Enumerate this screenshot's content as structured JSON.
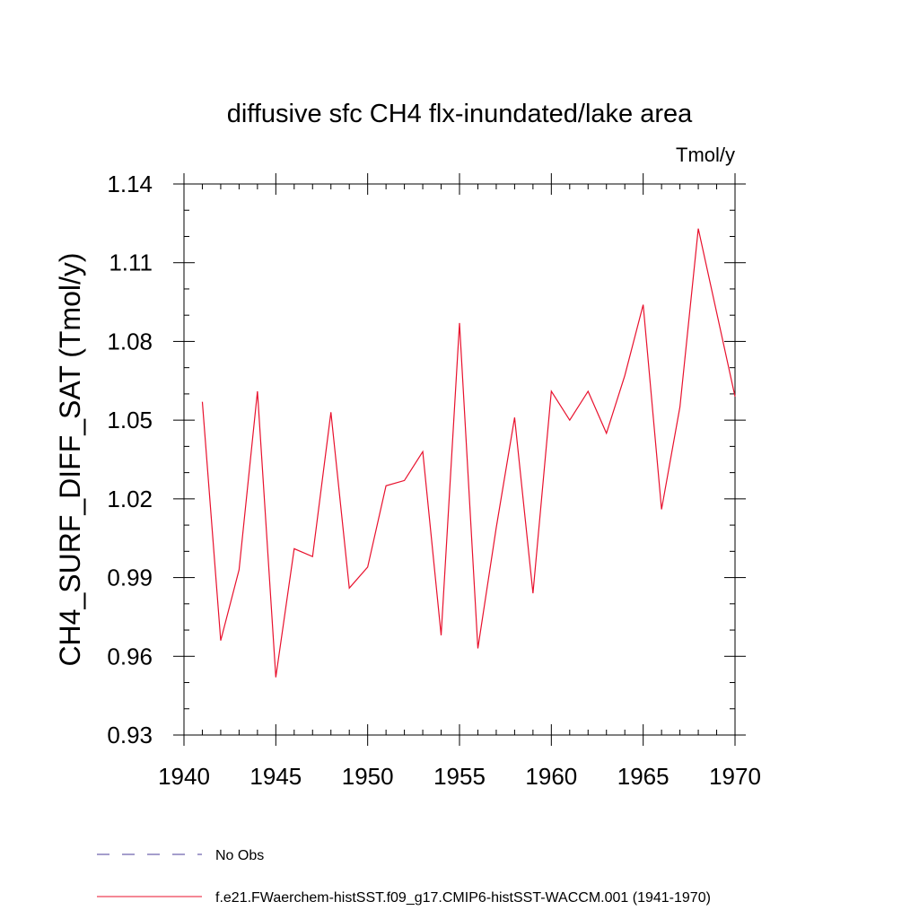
{
  "chart_data": {
    "type": "line",
    "title": "diffusive sfc CH4 flx-inundated/lake area",
    "units": "Tmol/y",
    "ylabel": "CH4_SURF_DIFF_SAT  (Tmol/y)",
    "xlabel": "",
    "xlim": [
      1940,
      1970
    ],
    "ylim": [
      0.93,
      1.14
    ],
    "x_ticks": [
      "1940",
      "1945",
      "1950",
      "1955",
      "1960",
      "1965",
      "1970"
    ],
    "y_ticks": [
      "0.93",
      "0.96",
      "0.99",
      "1.02",
      "1.05",
      "1.08",
      "1.11",
      "1.14"
    ],
    "grid": false,
    "legend_position": "bottom",
    "series": [
      {
        "name": "f.e21.FWaerchem-histSST.f09_g17.CMIP6-histSST-WACCM.001 (1941-1970)",
        "color": "#e8112d",
        "x": [
          1941,
          1942,
          1943,
          1944,
          1945,
          1946,
          1947,
          1948,
          1949,
          1950,
          1951,
          1952,
          1953,
          1954,
          1955,
          1956,
          1957,
          1958,
          1959,
          1960,
          1961,
          1962,
          1963,
          1964,
          1965,
          1966,
          1967,
          1968,
          1969,
          1970
        ],
        "y": [
          1.057,
          0.966,
          0.993,
          1.061,
          0.952,
          1.001,
          0.998,
          1.053,
          0.986,
          0.994,
          1.025,
          1.027,
          1.038,
          0.968,
          1.087,
          0.963,
          1.009,
          1.051,
          0.984,
          1.061,
          1.05,
          1.061,
          1.045,
          1.067,
          1.094,
          1.016,
          1.055,
          1.123,
          1.091,
          1.059
        ]
      },
      {
        "name": "No Obs",
        "color": "#4b3c9a",
        "dashed": true,
        "x": [],
        "y": []
      }
    ]
  }
}
